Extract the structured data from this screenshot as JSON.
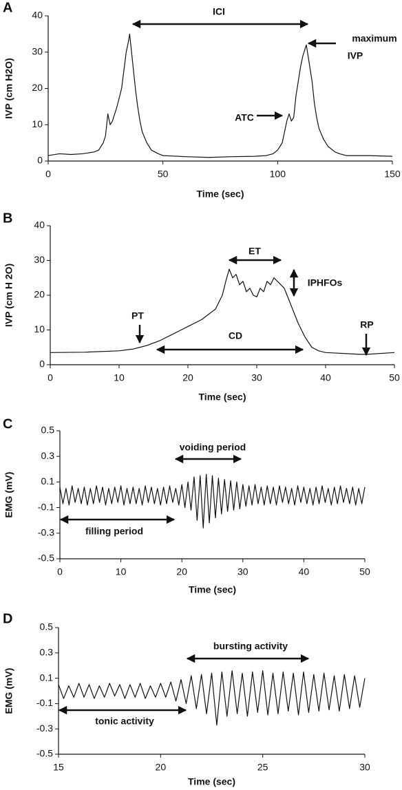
{
  "chart_data": [
    {
      "type": "line",
      "panel": "A",
      "xlabel": "Time (sec)",
      "ylabel": "IVP (cm H2O)",
      "xlim": [
        0,
        150
      ],
      "ylim": [
        0,
        40
      ],
      "xticks": [
        0,
        50,
        100,
        150
      ],
      "yticks": [
        0,
        10,
        20,
        30,
        40
      ],
      "x": [
        0,
        5,
        10,
        15,
        20,
        22,
        24,
        25,
        26,
        27,
        28,
        30,
        32,
        33,
        34,
        35,
        35.5,
        36,
        37,
        38,
        39,
        40,
        41,
        43,
        45,
        48,
        50,
        60,
        70,
        80,
        90,
        95,
        98,
        100,
        102,
        103,
        104,
        105,
        106,
        107,
        108,
        109,
        110,
        111,
        112,
        112.5,
        113,
        114,
        115,
        116,
        117,
        118,
        120,
        122,
        125,
        127,
        130,
        140,
        150
      ],
      "series": [
        {
          "name": null,
          "color": "#111111",
          "values": [
            1.5,
            2,
            1.8,
            2,
            2.5,
            3,
            5,
            7,
            13,
            10,
            11,
            15,
            20,
            25,
            30,
            33,
            35,
            32,
            26,
            20,
            15,
            11,
            8,
            5,
            3,
            2,
            1.5,
            1.2,
            1,
            1.2,
            1.3,
            1.5,
            2,
            3,
            5,
            8,
            11,
            13,
            11,
            12,
            18,
            22,
            26,
            29,
            31,
            32,
            30,
            26,
            22,
            16,
            12,
            9,
            6,
            4,
            2.5,
            2,
            1.5,
            1.5,
            1.3
          ]
        }
      ],
      "annotations": [
        "ICI",
        "ATC",
        "maximum",
        "IVP"
      ]
    },
    {
      "type": "line",
      "panel": "B",
      "xlabel": "Time (sec)",
      "ylabel": "IVP (cm H 2O)",
      "xlim": [
        0,
        50
      ],
      "ylim": [
        0,
        40
      ],
      "xticks": [
        0,
        10,
        20,
        30,
        40,
        50
      ],
      "yticks": [
        0,
        10,
        20,
        30,
        40
      ],
      "x": [
        0,
        5,
        10,
        12,
        13,
        14,
        16,
        18,
        19,
        20,
        22,
        23,
        24,
        25,
        25.5,
        26,
        26.5,
        27,
        27.5,
        28,
        28.5,
        29,
        29.5,
        30,
        30.5,
        31,
        31.5,
        32,
        32.5,
        33,
        33.5,
        34,
        35,
        36,
        37,
        38,
        39,
        40,
        45,
        46,
        50
      ],
      "series": [
        {
          "name": null,
          "color": "#111111",
          "values": [
            3.5,
            3.6,
            4,
            4.5,
            5,
            5.5,
            7,
            9,
            10,
            11,
            13,
            14.5,
            16,
            20,
            24,
            27.5,
            25,
            26,
            23,
            24,
            21,
            22,
            20,
            19.5,
            22,
            21,
            24,
            23,
            25,
            24,
            23,
            22,
            17,
            12,
            8,
            5,
            4,
            3.5,
            3,
            3,
            3.5
          ]
        }
      ],
      "annotations": [
        "ET",
        "IPHFOs",
        "PT",
        "CD",
        "RP"
      ]
    },
    {
      "type": "line",
      "panel": "C",
      "xlabel": "Time (sec)",
      "ylabel": "EMG (mV)",
      "xlim": [
        0,
        50
      ],
      "ylim": [
        -0.5,
        0.5
      ],
      "xticks": [
        0,
        10,
        20,
        30,
        40,
        50
      ],
      "yticks": [
        0.5,
        0.3,
        0.1,
        -0.1,
        -0.3,
        -0.5
      ],
      "x": [
        0,
        0.5,
        1,
        1.5,
        2,
        2.5,
        3,
        3.5,
        4,
        4.5,
        5,
        5.5,
        6,
        6.5,
        7,
        7.5,
        8,
        8.5,
        9,
        9.5,
        10,
        10.5,
        11,
        11.5,
        12,
        12.5,
        13,
        13.5,
        14,
        14.5,
        15,
        15.5,
        16,
        16.5,
        17,
        17.5,
        18,
        18.5,
        19,
        19.5,
        20,
        20.5,
        21,
        21.5,
        22,
        22.5,
        23,
        23.5,
        24,
        24.5,
        25,
        25.5,
        26,
        26.5,
        27,
        27.5,
        28,
        28.5,
        29,
        29.5,
        30,
        30.5,
        31,
        31.5,
        32,
        32.5,
        33,
        33.5,
        34,
        34.5,
        35,
        35.5,
        36,
        36.5,
        37,
        37.5,
        38,
        38.5,
        39,
        39.5,
        40,
        40.5,
        41,
        41.5,
        42,
        42.5,
        43,
        43.5,
        44,
        44.5,
        45,
        45.5,
        46,
        46.5,
        47,
        47.5,
        48,
        48.5,
        49,
        49.5,
        50
      ],
      "series": [
        {
          "name": null,
          "color": "#111111",
          "values": [
            0.06,
            -0.07,
            0.05,
            -0.08,
            0.07,
            -0.06,
            0.05,
            -0.07,
            0.06,
            -0.08,
            0.05,
            -0.07,
            0.07,
            -0.06,
            0.06,
            -0.08,
            0.05,
            -0.07,
            0.06,
            -0.06,
            0.07,
            -0.08,
            0.05,
            -0.07,
            0.06,
            -0.07,
            0.05,
            -0.08,
            0.07,
            -0.06,
            0.06,
            -0.07,
            0.05,
            -0.08,
            0.06,
            -0.07,
            0.07,
            -0.06,
            0.05,
            -0.08,
            0.08,
            -0.1,
            0.1,
            -0.12,
            0.14,
            -0.2,
            0.15,
            -0.26,
            0.16,
            -0.22,
            0.15,
            -0.18,
            0.13,
            -0.15,
            0.12,
            -0.13,
            0.11,
            -0.12,
            0.1,
            -0.11,
            0.08,
            -0.09,
            0.07,
            -0.08,
            0.08,
            -0.07,
            0.06,
            -0.08,
            0.07,
            -0.07,
            0.06,
            -0.08,
            0.07,
            -0.06,
            0.06,
            -0.07,
            0.05,
            -0.08,
            0.07,
            -0.06,
            0.06,
            -0.07,
            0.05,
            -0.08,
            0.06,
            -0.07,
            0.07,
            -0.06,
            0.05,
            -0.08,
            0.06,
            -0.07,
            0.07,
            -0.06,
            0.05,
            -0.07,
            0.06,
            -0.08,
            0.05,
            -0.07,
            0.06
          ]
        }
      ],
      "annotations": [
        "voiding period",
        "filling period"
      ]
    },
    {
      "type": "line",
      "panel": "D",
      "xlabel": "Time (sec)",
      "ylabel": "EMG (mV)",
      "xlim": [
        15,
        30
      ],
      "ylim": [
        -0.5,
        0.5
      ],
      "xticks": [
        15,
        20,
        25,
        30
      ],
      "yticks": [
        0.5,
        0.3,
        0.1,
        -0.1,
        -0.3,
        -0.5
      ],
      "x": [
        15,
        15.25,
        15.5,
        15.75,
        16,
        16.25,
        16.5,
        16.75,
        17,
        17.25,
        17.5,
        17.75,
        18,
        18.25,
        18.5,
        18.75,
        19,
        19.25,
        19.5,
        19.75,
        20,
        20.25,
        20.5,
        20.75,
        21,
        21.25,
        21.5,
        21.75,
        22,
        22.25,
        22.5,
        22.75,
        23,
        23.25,
        23.5,
        23.75,
        24,
        24.25,
        24.5,
        24.75,
        25,
        25.25,
        25.5,
        25.75,
        26,
        26.25,
        26.5,
        26.75,
        27,
        27.25,
        27.5,
        27.75,
        28,
        28.25,
        28.5,
        28.75,
        29,
        29.25,
        29.5,
        29.75,
        30
      ],
      "series": [
        {
          "name": null,
          "color": "#111111",
          "values": [
            0.05,
            -0.06,
            0.04,
            -0.05,
            0.06,
            -0.05,
            0.05,
            -0.06,
            0.04,
            -0.05,
            0.06,
            -0.04,
            0.05,
            -0.06,
            0.05,
            -0.05,
            0.06,
            -0.06,
            0.04,
            -0.05,
            0.06,
            -0.05,
            0.07,
            -0.08,
            0.09,
            -0.1,
            0.12,
            -0.14,
            0.13,
            -0.18,
            0.14,
            -0.27,
            0.15,
            -0.2,
            0.16,
            -0.18,
            0.14,
            -0.2,
            0.15,
            -0.17,
            0.16,
            -0.19,
            0.14,
            -0.18,
            0.15,
            -0.16,
            0.14,
            -0.19,
            0.15,
            -0.17,
            0.13,
            -0.16,
            0.14,
            -0.15,
            0.12,
            -0.16,
            0.13,
            -0.14,
            0.12,
            -0.13,
            0.1
          ]
        }
      ],
      "annotations": [
        "bursting activity",
        "tonic activity"
      ]
    }
  ]
}
